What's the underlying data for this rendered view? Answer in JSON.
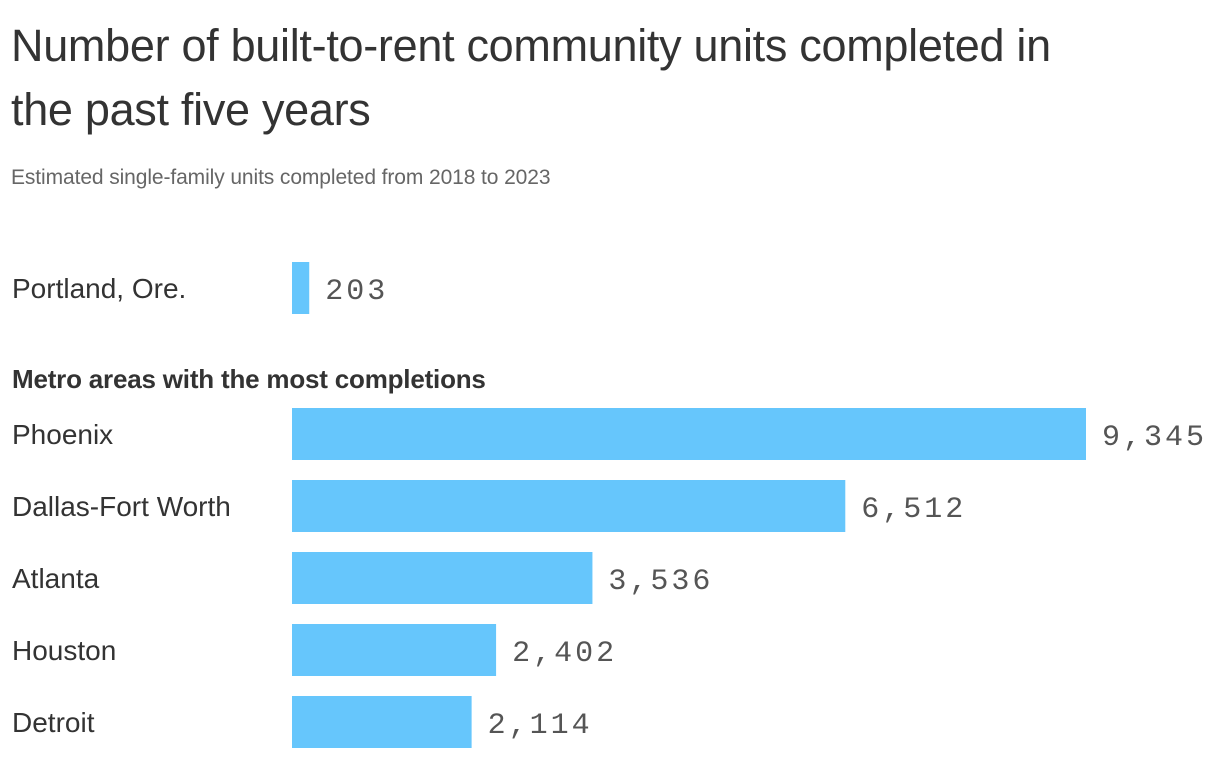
{
  "title": "Number of built-to-rent community units completed in the past five years",
  "subtitle": "Estimated single-family units completed from 2018 to 2023",
  "section_label": "Metro areas with the most completions",
  "colors": {
    "bar": "#66c6fc",
    "text": "#333333",
    "value_text": "#555555",
    "subtitle": "#666666"
  },
  "chart_data": {
    "type": "bar",
    "orientation": "horizontal",
    "title": "Number of built-to-rent community units completed in the past five years",
    "subtitle": "Estimated single-family units completed from 2018 to 2023",
    "xlim": [
      0,
      9345
    ],
    "grid": false,
    "groups": [
      {
        "label": "",
        "categories": [
          "Portland, Ore."
        ],
        "values": [
          203
        ],
        "value_labels": [
          "203"
        ]
      },
      {
        "label": "Metro areas with the most completions",
        "categories": [
          "Phoenix",
          "Dallas-Fort Worth",
          "Atlanta",
          "Houston",
          "Detroit"
        ],
        "values": [
          9345,
          6512,
          3536,
          2402,
          2114
        ],
        "value_labels": [
          "9,345",
          "6,512",
          "3,536",
          "2,402",
          "2,114"
        ]
      }
    ]
  }
}
